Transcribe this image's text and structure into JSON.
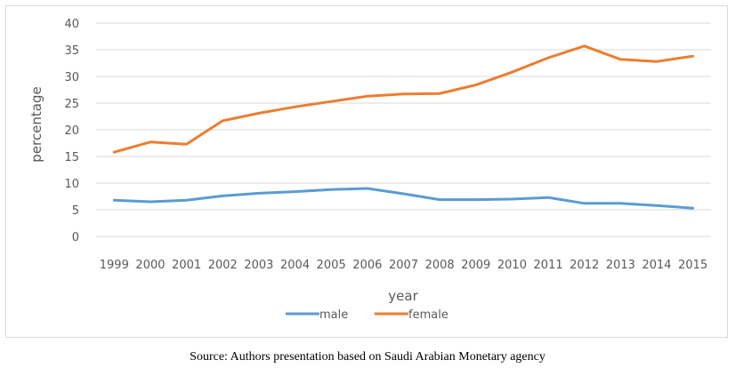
{
  "chart_data": {
    "type": "line",
    "title": "",
    "xlabel": "year",
    "ylabel": "percentage",
    "ylim": [
      0,
      40
    ],
    "yticks": [
      0,
      5,
      10,
      15,
      20,
      25,
      30,
      35,
      40
    ],
    "grid": true,
    "legend_position": "bottom",
    "categories": [
      "1999",
      "2000",
      "2001",
      "2002",
      "2003",
      "2004",
      "2005",
      "2006",
      "2007",
      "2008",
      "2009",
      "2010",
      "2011",
      "2012",
      "2013",
      "2014",
      "2015"
    ],
    "series": [
      {
        "name": "male",
        "color": "#5b9bd5",
        "values": [
          6.8,
          6.5,
          6.8,
          7.6,
          8.1,
          8.4,
          8.8,
          9.0,
          8.0,
          6.9,
          6.9,
          7.0,
          7.3,
          6.2,
          6.2,
          5.8,
          5.3
        ]
      },
      {
        "name": "female",
        "color": "#ed7d31",
        "values": [
          15.8,
          17.7,
          17.3,
          21.7,
          23.1,
          24.3,
          25.3,
          26.3,
          26.7,
          26.8,
          28.4,
          30.8,
          33.5,
          35.7,
          33.2,
          32.8,
          33.8
        ]
      }
    ]
  },
  "caption": {
    "source": "Source: Authors presentation based on Saudi Arabian Monetary agency"
  }
}
